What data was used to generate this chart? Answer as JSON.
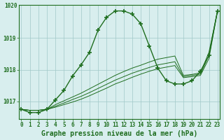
{
  "title": "Graphe pression niveau de la mer (hPa)",
  "hours": [
    0,
    1,
    2,
    3,
    4,
    5,
    6,
    7,
    8,
    9,
    10,
    11,
    12,
    13,
    14,
    15,
    16,
    17,
    18,
    19,
    20,
    21,
    22,
    23
  ],
  "main_line": {
    "y": [
      1016.75,
      1016.65,
      1016.65,
      1016.75,
      1017.05,
      1017.35,
      1017.8,
      1018.15,
      1018.55,
      1019.25,
      1019.65,
      1019.85,
      1019.85,
      1019.75,
      1019.45,
      1018.75,
      1018.05,
      1017.65,
      1017.55,
      1017.55,
      1017.65,
      1017.95,
      1018.45,
      1019.85
    ],
    "color": "#1f6e1f",
    "linewidth": 1.0,
    "marker": "+",
    "markersize": 4,
    "markeredgewidth": 1.2
  },
  "diag_lines": [
    {
      "y": [
        1016.75,
        1016.72,
        1016.72,
        1016.75,
        1016.82,
        1016.9,
        1016.98,
        1017.07,
        1017.18,
        1017.3,
        1017.42,
        1017.55,
        1017.65,
        1017.76,
        1017.86,
        1017.95,
        1018.03,
        1018.08,
        1018.13,
        1017.75,
        1017.78,
        1017.82,
        1018.35,
        1019.85
      ],
      "color": "#1f6e1f",
      "linewidth": 0.7
    },
    {
      "y": [
        1016.75,
        1016.72,
        1016.72,
        1016.75,
        1016.85,
        1016.95,
        1017.06,
        1017.16,
        1017.28,
        1017.41,
        1017.54,
        1017.67,
        1017.78,
        1017.89,
        1017.98,
        1018.07,
        1018.15,
        1018.2,
        1018.25,
        1017.78,
        1017.82,
        1017.86,
        1018.45,
        1019.85
      ],
      "color": "#1f6e1f",
      "linewidth": 0.7
    },
    {
      "y": [
        1016.75,
        1016.72,
        1016.72,
        1016.75,
        1016.9,
        1017.02,
        1017.14,
        1017.26,
        1017.4,
        1017.54,
        1017.68,
        1017.82,
        1017.94,
        1018.05,
        1018.14,
        1018.24,
        1018.33,
        1018.38,
        1018.43,
        1017.82,
        1017.85,
        1017.9,
        1018.55,
        1019.85
      ],
      "color": "#1f6e1f",
      "linewidth": 0.7
    }
  ],
  "ylim": [
    1016.45,
    1020.05
  ],
  "yticks": [
    1017,
    1018,
    1019
  ],
  "ytick_top_label": "1020",
  "ytick_top_val": 1020.0,
  "xlim": [
    -0.3,
    23.3
  ],
  "background_color": "#d8eeee",
  "grid_color": "#a0c8c8",
  "line_color": "#1f6e1f",
  "title_fontsize": 7.0,
  "tick_fontsize": 5.5
}
